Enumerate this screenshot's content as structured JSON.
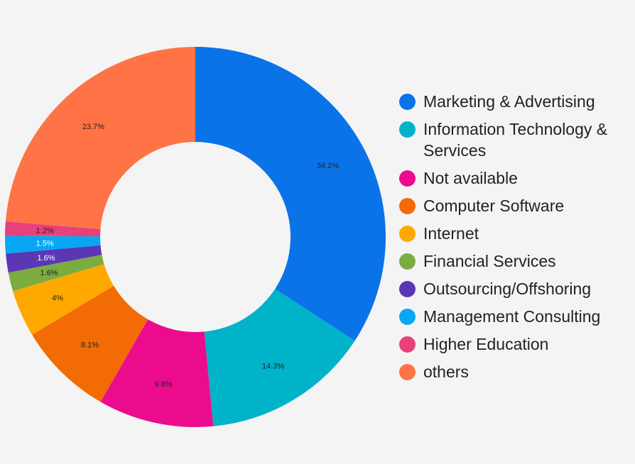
{
  "chart_data": {
    "type": "pie",
    "donut": true,
    "legend_position": "right",
    "slices": [
      {
        "label": "Marketing & Advertising",
        "value": 34.2,
        "display": "34.2%",
        "color": "#0a73e8"
      },
      {
        "label": "Information Technology & Services",
        "value": 14.3,
        "display": "14.3%",
        "color": "#00b3c9"
      },
      {
        "label": "Not available",
        "value": 9.8,
        "display": "9.8%",
        "color": "#ec0b8c"
      },
      {
        "label": "Computer Software",
        "value": 8.1,
        "display": "8.1%",
        "color": "#f26b04"
      },
      {
        "label": "Internet",
        "value": 4,
        "display": "4%",
        "color": "#ffa800"
      },
      {
        "label": "Financial Services",
        "value": 1.6,
        "display": "1.6%",
        "color": "#7bac3f"
      },
      {
        "label": "Outsourcing/Offshoring",
        "value": 1.6,
        "display": "1.6%",
        "color": "#5b37b5"
      },
      {
        "label": "Management Consulting",
        "value": 1.5,
        "display": "1.5%",
        "color": "#06a8f3"
      },
      {
        "label": "Higher Education",
        "value": 1.2,
        "display": "1.2%",
        "color": "#e8407b"
      },
      {
        "label": "others",
        "value": 23.7,
        "display": "23.7%",
        "color": "#ff7346"
      }
    ]
  }
}
